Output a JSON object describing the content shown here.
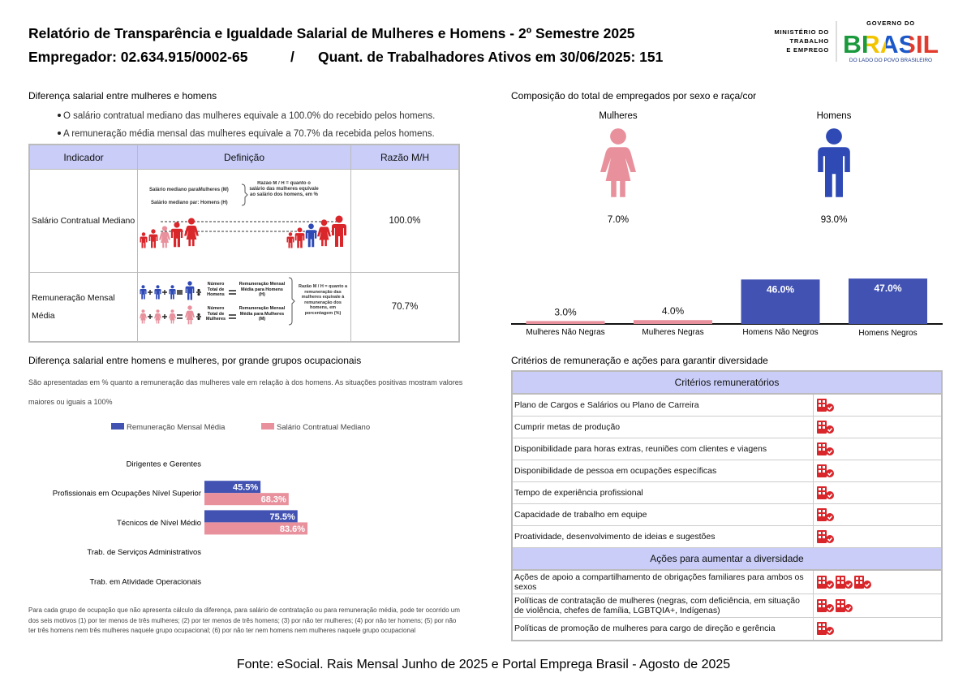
{
  "header": {
    "title": "Relatório de Transparência e Igualdade Salarial de Mulheres e Homens - 2º Semestre 2025",
    "employer": "Empregador: 02.634.915/0002-65",
    "separator": "/",
    "workers": "Quant. de Trabalhadores Ativos em 30/06/2025: 151",
    "ministry": [
      "MINISTÉRIO DO",
      "TRABALHO",
      "E EMPREGO"
    ],
    "gov_top": "GOVERNO DO",
    "gov_brand": "BRASIL",
    "gov_tagline": "DO LADO DO POVO BRASILEIRO"
  },
  "pay_gap": {
    "title": "Diferença salarial entre mulheres e homens",
    "bullets": [
      "O salário contratual mediano das mulheres equivale a 100.0% do recebido pelos homens.",
      "A remuneração média mensal das mulheres equivale a 70.7% da recebida pelos homens."
    ],
    "table": {
      "columns": [
        "Indicador",
        "Definição",
        "Razão M/H"
      ],
      "rows": [
        {
          "indicator": "Salário Contratual Mediano",
          "ratio": "100.0%",
          "definition": {
            "median_women": "Salário mediano paraMulheres (M)",
            "median_men": "Salário mediano par: Homens (H)",
            "note": "Razão M / H = quanto o salário das mulheres equivale ao salário dos homens, em %"
          }
        },
        {
          "indicator": "Remuneração Mensal Média",
          "ratio": "70.7%",
          "definition": {
            "men_count": "Número Total de Homens",
            "men_pay": "Remuneração Mensal Média para Homens (H)",
            "women_count": "Número Total de Mulheres",
            "women_pay": "Remuneração Mensal Média para Mulheres (M)",
            "note": "Razão M / H = quanto a remuneração das mulheres equivale à remuneração dos homens, em porcentagem (%)"
          }
        }
      ]
    }
  },
  "composition": {
    "title": "Composição do total de empregados por sexo e raça/cor",
    "groups": [
      {
        "label": "Mulheres",
        "share": "7.0%"
      },
      {
        "label": "Homens",
        "share": "93.0%"
      }
    ]
  },
  "chart_data": [
    {
      "type": "bar",
      "categories": [
        "Mulheres Não Negras",
        "Mulheres Negras",
        "Homens Não Negros",
        "Homens Negros"
      ],
      "values": [
        3.0,
        4.0,
        46.0,
        47.0
      ],
      "value_labels": [
        "3.0%",
        "4.0%",
        "46.0%",
        "47.0%"
      ],
      "colors": [
        "#e8919d",
        "#e8919d",
        "#4152b2",
        "#4152b2"
      ]
    },
    {
      "type": "barh",
      "title": "Diferença salarial entre homens e mulheres, por grande grupos ocupacionais",
      "subtitle": "São apresentadas em % quanto a remuneração das mulheres vale em relação à dos homens. As situações positivas mostram valores maiores ou iguais a 100%",
      "categories": [
        "Dirigentes e Gerentes",
        "Profissionais em Ocupações Nível Superior",
        "Técnicos de Nível Médio",
        "Trab. de Serviços Administrativos",
        "Trab. em Atividade Operacionais"
      ],
      "series": [
        {
          "name": "Remuneração Mensal Média",
          "color": "#4152b2",
          "values": [
            null,
            45.5,
            75.5,
            null,
            null
          ],
          "value_labels": [
            null,
            "45.5%",
            "75.5%",
            null,
            null
          ]
        },
        {
          "name": "Salário Contratual Mediano",
          "color": "#e8919d",
          "values": [
            null,
            68.3,
            83.6,
            null,
            null
          ],
          "value_labels": [
            null,
            "68.3%",
            "83.6%",
            null,
            null
          ]
        }
      ],
      "footnote": "Para cada grupo de ocupação que não apresenta cálculo da diferença, para salário de contratação ou para remuneração média, pode ter ocorrido um dos seis motivos (1) por ter menos de três mulheres; (2) por ter menos de três homens; (3) por não ter mulheres; (4) por não ter homens; (5) por não ter três homens nem três mulheres naquele grupo ocupacional; (6) por não ter nem homens nem mulheres naquele grupo ocupacional"
    }
  ],
  "criteria": {
    "title": "Critérios de remuneração e ações para garantir diversidade",
    "sections": [
      {
        "heading": "Critérios remuneratórios",
        "rows": [
          {
            "label": "Plano de Cargos e Salários ou Plano de Carreira",
            "icons": 1
          },
          {
            "label": "Cumprir metas de produção",
            "icons": 1
          },
          {
            "label": "Disponibilidade para horas extras, reuniões com clientes e viagens",
            "icons": 1
          },
          {
            "label": "Disponibilidade de pessoa em ocupações específicas",
            "icons": 1
          },
          {
            "label": "Tempo de experiência profissional",
            "icons": 1
          },
          {
            "label": "Capacidade de trabalho em equipe",
            "icons": 1
          },
          {
            "label": "Proatividade, desenvolvimento de ideias e sugestões",
            "icons": 1
          }
        ]
      },
      {
        "heading": "Ações para aumentar a diversidade",
        "rows": [
          {
            "label": "Ações de apoio a compartilhamento de obrigações familiares para ambos os sexos",
            "icons": 3
          },
          {
            "label": "Políticas de contratação de mulheres (negras, com deficiência, em situação de violência, chefes de família, LGBTQIA+, Indígenas)",
            "icons": 2
          },
          {
            "label": "Políticas de promoção de mulheres para cargo de direção e gerência",
            "icons": 1
          }
        ]
      }
    ]
  },
  "source": "Fonte: eSocial. Rais Mensal Junho de 2025 e Portal Emprega Brasil - Agosto de 2025"
}
